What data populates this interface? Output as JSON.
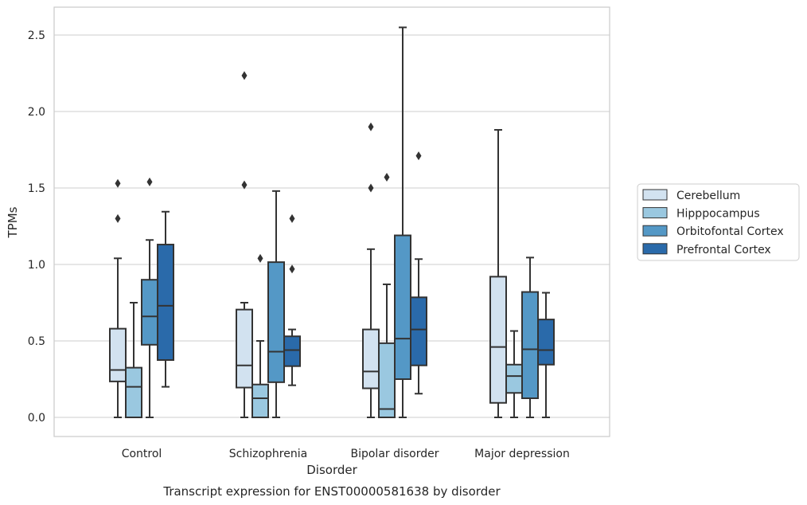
{
  "chart_data": {
    "type": "box",
    "caption": "Transcript expression for ENST00000581638 by disorder",
    "xlabel": "Disorder",
    "ylabel": "TPMs",
    "ylim": [
      -0.12,
      2.68
    ],
    "yticks": [
      "0.0",
      "0.5",
      "1.0",
      "1.5",
      "2.0",
      "2.5"
    ],
    "grid": true,
    "legend_position": "right",
    "categories": [
      "Control",
      "Schizophrenia",
      "Bipolar disorder",
      "Major depression"
    ],
    "series": [
      {
        "name": "Cerebellum",
        "color": "#d2e2f0",
        "boxes": [
          {
            "whislo": 0.0,
            "q1": 0.235,
            "med": 0.31,
            "q3": 0.58,
            "whishi": 1.04,
            "fliers": [
              1.3,
              1.53
            ]
          },
          {
            "whislo": 0.0,
            "q1": 0.195,
            "med": 0.34,
            "q3": 0.705,
            "whishi": 0.75,
            "fliers": [
              1.52,
              2.235
            ]
          },
          {
            "whislo": 0.0,
            "q1": 0.19,
            "med": 0.3,
            "q3": 0.575,
            "whishi": 1.1,
            "fliers": [
              1.5,
              1.9
            ]
          },
          {
            "whislo": 0.0,
            "q1": 0.095,
            "med": 0.46,
            "q3": 0.92,
            "whishi": 1.88,
            "fliers": []
          }
        ]
      },
      {
        "name": "Hipppocampus",
        "color": "#9ac8e0",
        "boxes": [
          {
            "whislo": 0.0,
            "q1": 0.0,
            "med": 0.2,
            "q3": 0.325,
            "whishi": 0.75,
            "fliers": []
          },
          {
            "whislo": 0.0,
            "q1": 0.0,
            "med": 0.125,
            "q3": 0.215,
            "whishi": 0.5,
            "fliers": [
              1.04
            ]
          },
          {
            "whislo": 0.0,
            "q1": 0.0,
            "med": 0.055,
            "q3": 0.485,
            "whishi": 0.87,
            "fliers": [
              1.57
            ]
          },
          {
            "whislo": 0.0,
            "q1": 0.16,
            "med": 0.27,
            "q3": 0.345,
            "whishi": 0.565,
            "fliers": []
          }
        ]
      },
      {
        "name": "Orbitofontal Cortex",
        "color": "#5498c6",
        "boxes": [
          {
            "whislo": 0.0,
            "q1": 0.475,
            "med": 0.66,
            "q3": 0.9,
            "whishi": 1.16,
            "fliers": [
              1.54
            ]
          },
          {
            "whislo": 0.0,
            "q1": 0.23,
            "med": 0.43,
            "q3": 1.015,
            "whishi": 1.48,
            "fliers": []
          },
          {
            "whislo": 0.0,
            "q1": 0.25,
            "med": 0.515,
            "q3": 1.19,
            "whishi": 2.55,
            "fliers": []
          },
          {
            "whislo": 0.0,
            "q1": 0.125,
            "med": 0.445,
            "q3": 0.82,
            "whishi": 1.045,
            "fliers": []
          }
        ]
      },
      {
        "name": "Prefrontal Cortex",
        "color": "#2a6aaa",
        "boxes": [
          {
            "whislo": 0.2,
            "q1": 0.375,
            "med": 0.73,
            "q3": 1.13,
            "whishi": 1.345,
            "fliers": []
          },
          {
            "whislo": 0.21,
            "q1": 0.335,
            "med": 0.44,
            "q3": 0.53,
            "whishi": 0.575,
            "fliers": [
              0.97,
              1.3
            ]
          },
          {
            "whislo": 0.155,
            "q1": 0.34,
            "med": 0.575,
            "q3": 0.785,
            "whishi": 1.035,
            "fliers": [
              1.71
            ]
          },
          {
            "whislo": 0.0,
            "q1": 0.345,
            "med": 0.44,
            "q3": 0.64,
            "whishi": 0.815,
            "fliers": []
          }
        ]
      }
    ]
  }
}
